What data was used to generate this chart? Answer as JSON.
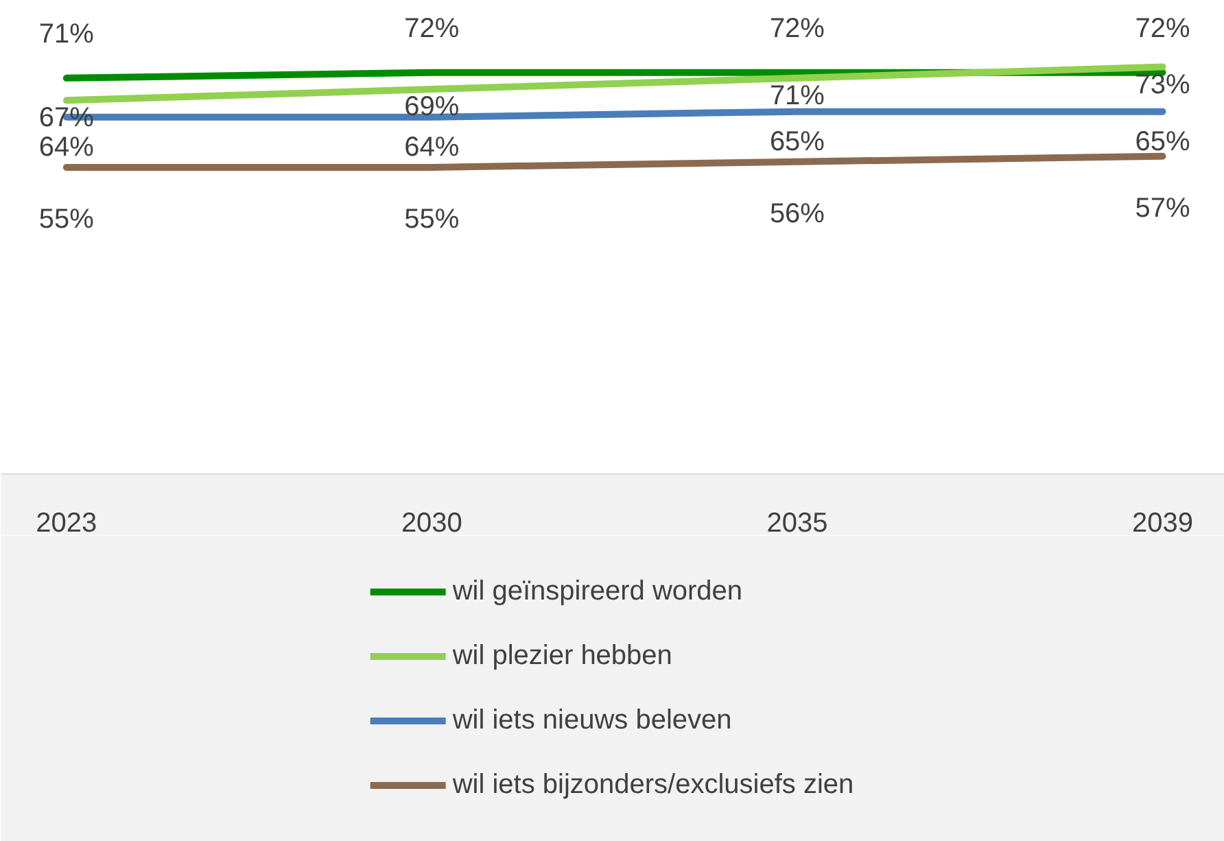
{
  "chart_data": {
    "type": "line",
    "categories": [
      "2023",
      "2030",
      "2035",
      "2039"
    ],
    "series": [
      {
        "name": "wil geïnspireerd worden",
        "color": "#008c00",
        "values": [
          71,
          72,
          72,
          72
        ],
        "value_labels": [
          "71%",
          "72%",
          "72%",
          "72%"
        ]
      },
      {
        "name": "wil plezier hebben",
        "color": "#92d050",
        "values": [
          67,
          69,
          71,
          73
        ],
        "value_labels": [
          "67%",
          "69%",
          "71%",
          "73%"
        ]
      },
      {
        "name": "wil iets nieuws beleven",
        "color": "#4a7ebb",
        "values": [
          64,
          64,
          65,
          65
        ],
        "value_labels": [
          "64%",
          "64%",
          "65%",
          "65%"
        ]
      },
      {
        "name": "wil iets bijzonders/exclusiefs zien",
        "color": "#8b6a4f",
        "values": [
          55,
          55,
          56,
          57
        ],
        "value_labels": [
          "55%",
          "55%",
          "56%",
          "57%"
        ]
      }
    ],
    "tick_labels": "x",
    "legend": "bottom"
  }
}
